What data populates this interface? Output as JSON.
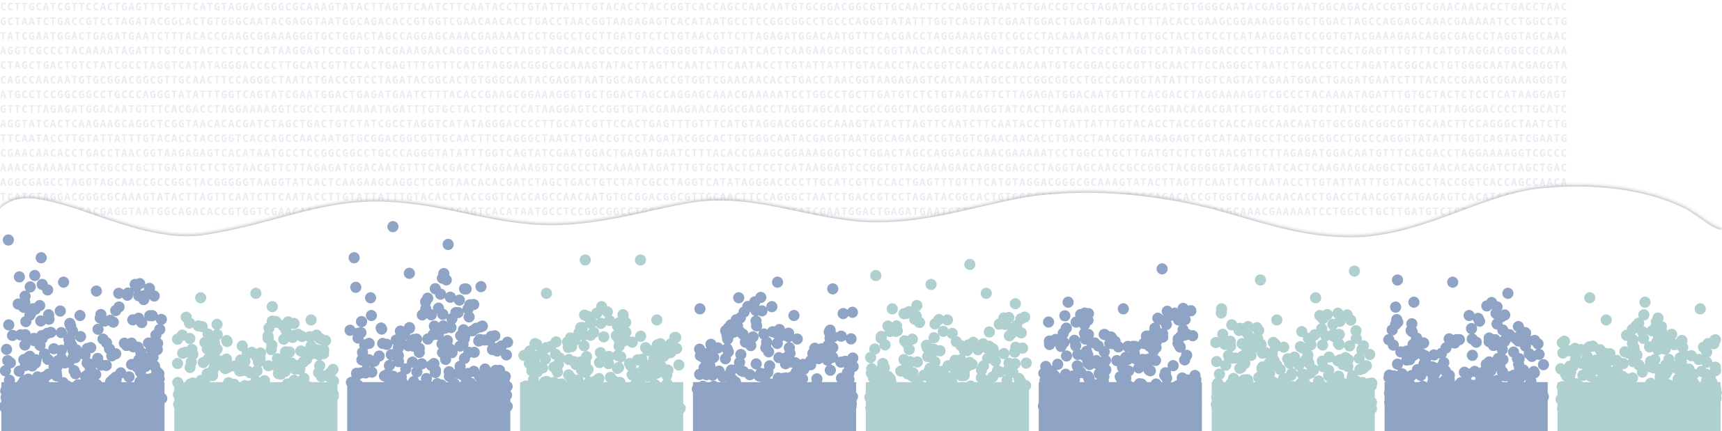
{
  "background": {
    "sequence_text": "CCTTGCATCGTTCCACTGAGTTTGTTTCATGTAGGACGGGCGCAAAGTATACTTAGTTCAATCTTCAATACCTTGTATTATTTGTACACCTACCGGTCACCAGCCAACAATGTGCGGACGGCGTTGCAACTTCCAGGGCTAATCTGACCGTCCTAGATACGGCACTGTGGGCAATACGAGGTAATGGCAGACACCGTGGTCGAACAACACCTGACCTAACGGTAAGAGAGTCACATAATGCCTCCGGCGGCCTGCCCAGGGTATATTTGGTCAGTATCGAATGGACTGAGATGAATCTTTACACCGAAGCGGAAAGGGTGCTGGACTAGCCAGGAGCAAACGAAAAATCCTGGCCTGCTTGATGTCTCTGTAACGTTCTTAGAGATGGACAATGTTTCACGACCTAGGAAAAGGTCGCCCTACAAAATAGATTTGTGCTACTCTCCTCATAAGGAGTCCGGTGTACGAAAGAACAGGCGAGCCTAGGTAGCAACCGCCGGCTACGGGGGTAAGGTATCACTCAAGAAGCAGGCTCGGTAACACACGATCTAGCTGACTGTCTATCGCCTAGGTCATATAGGGACC",
    "text_color": "#e9ecf2",
    "wave_color": "#ffffff",
    "wave_shadow_color": "#9aa0aa"
  },
  "chart_data": {
    "type": "scatter",
    "chart_kind": "manhattan",
    "title": "",
    "xlabel": "",
    "ylabel": "",
    "axes_visible": false,
    "grid": false,
    "legend": "none",
    "colors": {
      "primary": "#8fa3c4",
      "secondary": "#b0d0d0"
    },
    "groups": [
      {
        "index": 1,
        "color": "#8fa3c4",
        "peak": 0.9,
        "outliers": [
          0.86,
          0.67,
          0.62,
          0.58,
          0.52,
          0.66,
          0.78,
          0.63
        ]
      },
      {
        "index": 2,
        "color": "#b0d0d0",
        "peak": 0.55,
        "outliers": [
          0.6,
          0.62,
          0.5,
          0.48,
          0.56
        ]
      },
      {
        "index": 3,
        "color": "#8fa3c4",
        "peak": 0.88,
        "outliers": [
          0.92,
          0.84,
          0.78,
          0.71,
          0.64,
          0.6,
          0.55,
          0.65
        ]
      },
      {
        "index": 4,
        "color": "#b0d0d0",
        "peak": 0.6,
        "outliers": [
          0.77,
          0.77,
          0.62,
          0.56,
          0.5
        ]
      },
      {
        "index": 5,
        "color": "#8fa3c4",
        "peak": 0.65,
        "outliers": [
          0.67,
          0.64,
          0.6,
          0.52,
          0.55
        ]
      },
      {
        "index": 6,
        "color": "#b0d0d0",
        "peak": 0.6,
        "outliers": [
          0.75,
          0.7,
          0.66,
          0.62,
          0.55,
          0.5
        ]
      },
      {
        "index": 7,
        "color": "#8fa3c4",
        "peak": 0.58,
        "outliers": [
          0.73,
          0.58,
          0.55,
          0.5,
          0.44
        ]
      },
      {
        "index": 8,
        "color": "#b0d0d0",
        "peak": 0.56,
        "outliers": [
          0.72,
          0.68,
          0.6,
          0.55,
          0.5
        ]
      },
      {
        "index": 9,
        "color": "#8fa3c4",
        "peak": 0.6,
        "outliers": [
          0.68,
          0.67,
          0.62,
          0.58,
          0.52
        ]
      },
      {
        "index": 10,
        "color": "#b0d0d0",
        "peak": 0.52,
        "outliers": [
          0.6,
          0.58,
          0.55,
          0.5,
          0.47
        ]
      }
    ]
  }
}
